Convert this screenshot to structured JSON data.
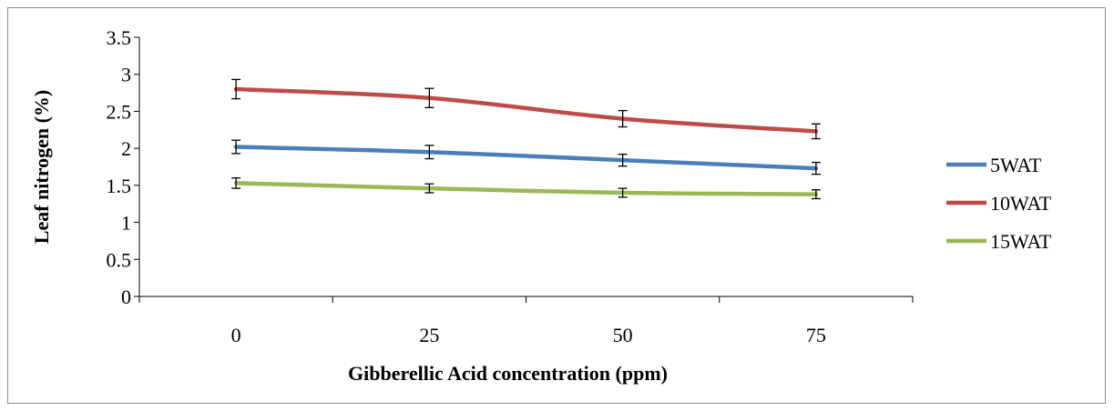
{
  "chart_data": {
    "type": "line",
    "title": "",
    "xlabel": "Gibberellic Acid concentration (ppm)",
    "ylabel": "Leaf nitrogen (%)",
    "categories": [
      "0",
      "25",
      "50",
      "75"
    ],
    "ylim": [
      0,
      3.5
    ],
    "yticks": [
      "0",
      "0.5",
      "1",
      "1.5",
      "2",
      "2.5",
      "3",
      "3.5"
    ],
    "grid": false,
    "legend_position": "right",
    "error_bars": true,
    "series": [
      {
        "name": "5WAT",
        "color": "#4a7ebb",
        "values": [
          2.02,
          1.95,
          1.84,
          1.73
        ],
        "errors": [
          0.09,
          0.09,
          0.08,
          0.08
        ]
      },
      {
        "name": "10WAT",
        "color": "#be4b48",
        "values": [
          2.8,
          2.68,
          2.4,
          2.23
        ],
        "errors": [
          0.13,
          0.13,
          0.11,
          0.1
        ]
      },
      {
        "name": "15WAT",
        "color": "#98b954",
        "values": [
          1.53,
          1.46,
          1.4,
          1.38
        ],
        "errors": [
          0.07,
          0.06,
          0.06,
          0.06
        ]
      }
    ]
  }
}
